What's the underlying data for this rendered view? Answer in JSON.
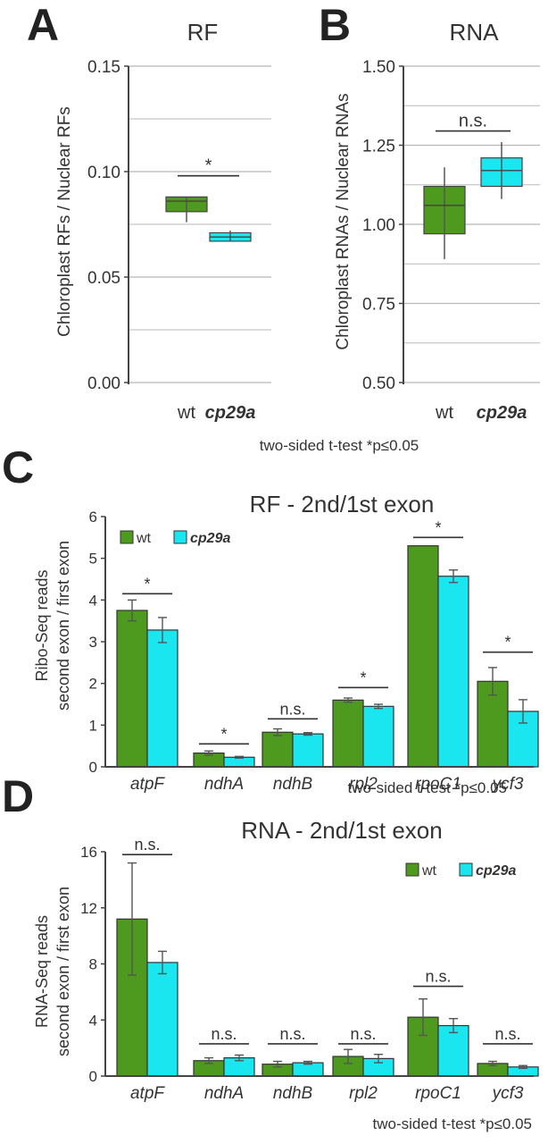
{
  "colors": {
    "wt": "#4e9a1e",
    "cp29a": "#19e6ee",
    "axis": "#444444",
    "grid": "#b8b8b8",
    "text": "#333333",
    "letter": "#222222"
  },
  "chart_data": [
    {
      "panel": "A",
      "type": "box",
      "title": "RF",
      "ylabel": "Chloroplast RFs / Nuclear RFs",
      "ylim": [
        0,
        0.15
      ],
      "yticks": [
        0.0,
        0.05,
        0.1,
        0.15
      ],
      "ytick_labels": [
        "0.00",
        "0.05",
        "0.10",
        "0.15"
      ],
      "grid": true,
      "categories": [
        "wt",
        "cp29a"
      ],
      "boxes": [
        {
          "name": "wt",
          "min": 0.076,
          "q1": 0.081,
          "median": 0.086,
          "q3": 0.088,
          "max": 0.088
        },
        {
          "name": "cp29a",
          "min": 0.067,
          "q1": 0.067,
          "median": 0.069,
          "q3": 0.071,
          "max": 0.072
        }
      ],
      "significance": [
        {
          "from": 0,
          "to": 1,
          "label": "*",
          "y": 0.098
        }
      ],
      "note": "two-sided t-test *p≤0.05"
    },
    {
      "panel": "B",
      "type": "box",
      "title": "RNA",
      "ylabel": "Chloroplast RNAs / Nuclear RNAs",
      "ylim": [
        0.5,
        1.5
      ],
      "yticks": [
        0.5,
        0.75,
        1.0,
        1.25,
        1.5
      ],
      "ytick_labels": [
        "0.50",
        "0.75",
        "1.00",
        "1.25",
        "1.50"
      ],
      "grid": true,
      "categories": [
        "wt",
        "cp29a"
      ],
      "boxes": [
        {
          "name": "wt",
          "min": 0.89,
          "q1": 0.97,
          "median": 1.06,
          "q3": 1.12,
          "max": 1.18
        },
        {
          "name": "cp29a",
          "min": 1.08,
          "q1": 1.12,
          "median": 1.17,
          "q3": 1.21,
          "max": 1.26
        }
      ],
      "significance": [
        {
          "from": 0,
          "to": 1,
          "label": "n.s.",
          "y": 1.295
        }
      ]
    },
    {
      "panel": "C",
      "type": "bar",
      "title": "RF - 2nd/1st exon",
      "ylabel_lines": [
        "Ribo-Seq reads",
        "second exon / first exon"
      ],
      "ylim": [
        0,
        6
      ],
      "yticks": [
        0,
        1,
        2,
        3,
        4,
        5,
        6
      ],
      "ytick_labels": [
        "0",
        "1",
        "2",
        "3",
        "4",
        "5",
        "6"
      ],
      "categories": [
        "atpF",
        "ndhA",
        "ndhB",
        "rpl2",
        "rpoC1",
        "ycf3"
      ],
      "series": [
        {
          "name": "wt",
          "values": [
            3.75,
            0.33,
            0.83,
            1.6,
            5.3,
            2.05
          ],
          "errors": [
            0.25,
            0.05,
            0.08,
            0.05,
            0.0,
            0.33
          ]
        },
        {
          "name": "cp29a",
          "values": [
            3.28,
            0.23,
            0.79,
            1.45,
            4.57,
            1.33
          ],
          "errors": [
            0.3,
            0.02,
            0.03,
            0.05,
            0.15,
            0.28
          ]
        }
      ],
      "significance": [
        "*",
        "*",
        "n.s.",
        "*",
        "*",
        "*"
      ],
      "sig_y": [
        4.15,
        0.55,
        1.15,
        1.9,
        5.5,
        2.75
      ],
      "legend": {
        "position": "top-left",
        "entries": [
          "wt",
          "cp29a"
        ]
      },
      "note": "two-sided t-test *p≤0.05"
    },
    {
      "panel": "D",
      "type": "bar",
      "title": "RNA - 2nd/1st exon",
      "ylabel_lines": [
        "RNA-Seq reads",
        "second exon / first exon"
      ],
      "ylim": [
        0,
        16
      ],
      "yticks": [
        0,
        4,
        8,
        12,
        16
      ],
      "ytick_labels": [
        "0",
        "4",
        "8",
        "12",
        "16"
      ],
      "categories": [
        "atpF",
        "ndhA",
        "ndhB",
        "rpl2",
        "rpoC1",
        "ycf3"
      ],
      "series": [
        {
          "name": "wt",
          "values": [
            11.2,
            1.1,
            0.85,
            1.4,
            4.2,
            0.9
          ],
          "errors": [
            4.0,
            0.2,
            0.2,
            0.5,
            1.3,
            0.15
          ]
        },
        {
          "name": "cp29a",
          "values": [
            8.1,
            1.3,
            0.95,
            1.25,
            3.6,
            0.65
          ],
          "errors": [
            0.8,
            0.2,
            0.1,
            0.3,
            0.5,
            0.1
          ]
        }
      ],
      "significance": [
        "n.s.",
        "n.s.",
        "n.s.",
        "n.s.",
        "n.s.",
        "n.s."
      ],
      "sig_y": [
        15.8,
        2.3,
        2.3,
        2.3,
        6.4,
        2.3
      ],
      "legend": {
        "position": "top-right",
        "entries": [
          "wt",
          "cp29a"
        ]
      },
      "note": "two-sided t-test *p≤0.05"
    }
  ]
}
